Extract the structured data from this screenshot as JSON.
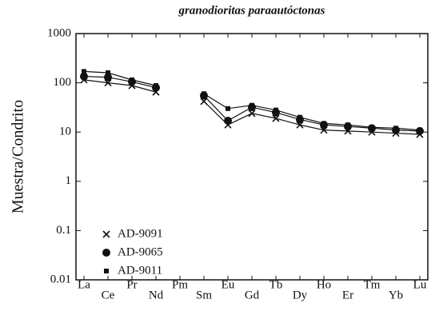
{
  "chart_data": {
    "type": "line",
    "title": "granodioritas paraautóctonas",
    "y_label": "Muestra/Condrito",
    "categories": [
      "La",
      "Ce",
      "Pr",
      "Nd",
      "Pm",
      "Sm",
      "Eu",
      "Gd",
      "Tb",
      "Dy",
      "Ho",
      "Er",
      "Tm",
      "Yb",
      "Lu"
    ],
    "series": [
      {
        "name": "AD-9091",
        "color": "#111111",
        "marker": "x",
        "values": [
          115,
          100,
          88,
          65,
          null,
          42,
          14,
          24,
          19,
          14,
          11,
          10.5,
          10,
          9.5,
          9
        ]
      },
      {
        "name": "AD-9065",
        "color": "#111111",
        "marker": "circle",
        "values": [
          135,
          130,
          105,
          80,
          null,
          55,
          17,
          32,
          25,
          18,
          14,
          13,
          12,
          11,
          10.5
        ]
      },
      {
        "name": "AD-9011",
        "color": "#111111",
        "marker": "square",
        "values": [
          170,
          160,
          115,
          88,
          null,
          60,
          30,
          35,
          28,
          20,
          15,
          14,
          12.5,
          12,
          11
        ]
      }
    ],
    "y_log": true,
    "ylim": [
      0.01,
      1000
    ],
    "yticks": [
      0.01,
      0.1,
      1,
      10,
      100,
      1000
    ],
    "legend": "lower left"
  }
}
